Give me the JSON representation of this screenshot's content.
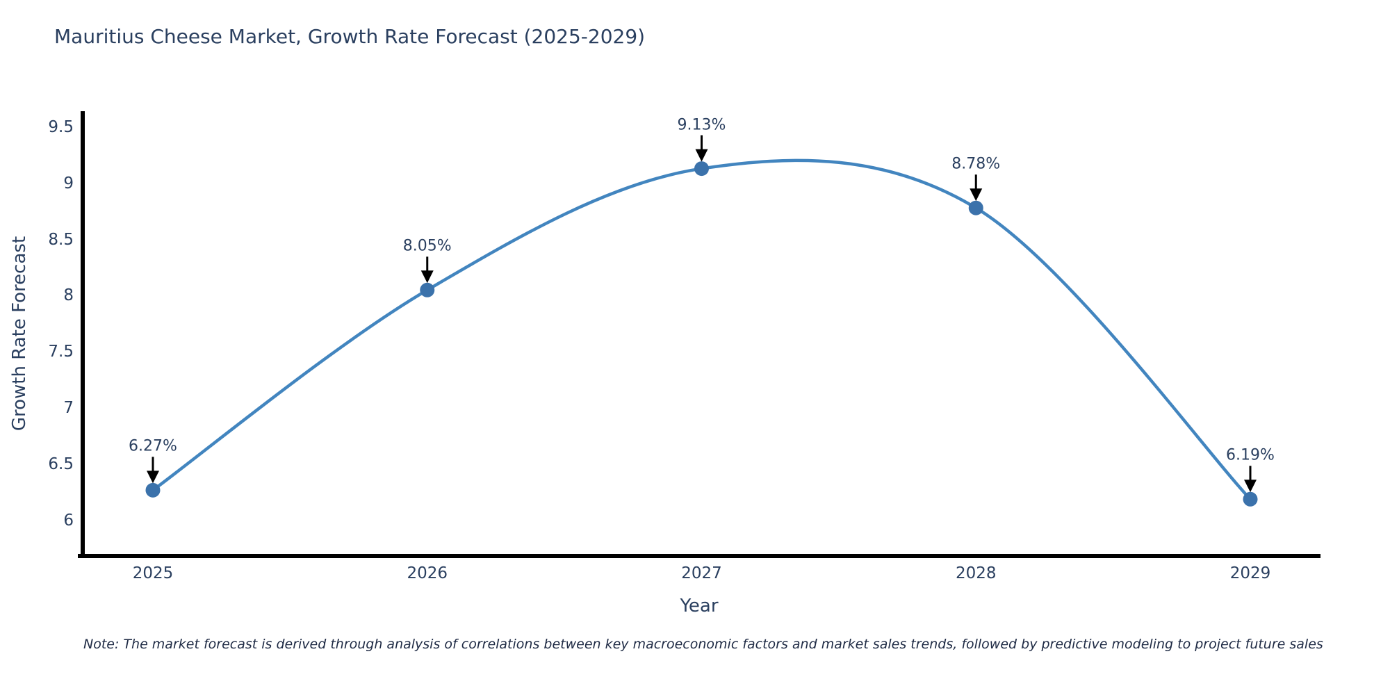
{
  "title": "Mauritius Cheese Market, Growth Rate Forecast (2025-2029)",
  "note": "Note: The market forecast is derived through analysis of correlations between key macroeconomic factors and market sales trends, followed by predictive modeling to project future sales",
  "chart_data": {
    "type": "line",
    "title": "Mauritius Cheese Market, Growth Rate Forecast (2025-2029)",
    "xlabel": "Year",
    "ylabel": "Growth Rate Forecast",
    "categories": [
      "2025",
      "2026",
      "2027",
      "2028",
      "2029"
    ],
    "values": [
      6.27,
      8.05,
      9.13,
      8.78,
      6.19
    ],
    "point_labels": [
      "6.27%",
      "8.05%",
      "9.13%",
      "8.78%",
      "6.19%"
    ],
    "yticks": [
      6,
      6.5,
      7,
      7.5,
      8,
      8.5,
      9,
      9.5
    ],
    "ylim": [
      5.69,
      9.64
    ],
    "xlim": [
      2024.73,
      2029.26
    ],
    "line_shape": "spline",
    "grid": false,
    "legend": "none",
    "colors": {
      "line": "#4285bf",
      "marker": "#3b72ab",
      "axis": "#000000",
      "text": "#2a3f5f",
      "note": "#1e2a44",
      "arrow": "#000000",
      "background": "#ffffff"
    }
  }
}
